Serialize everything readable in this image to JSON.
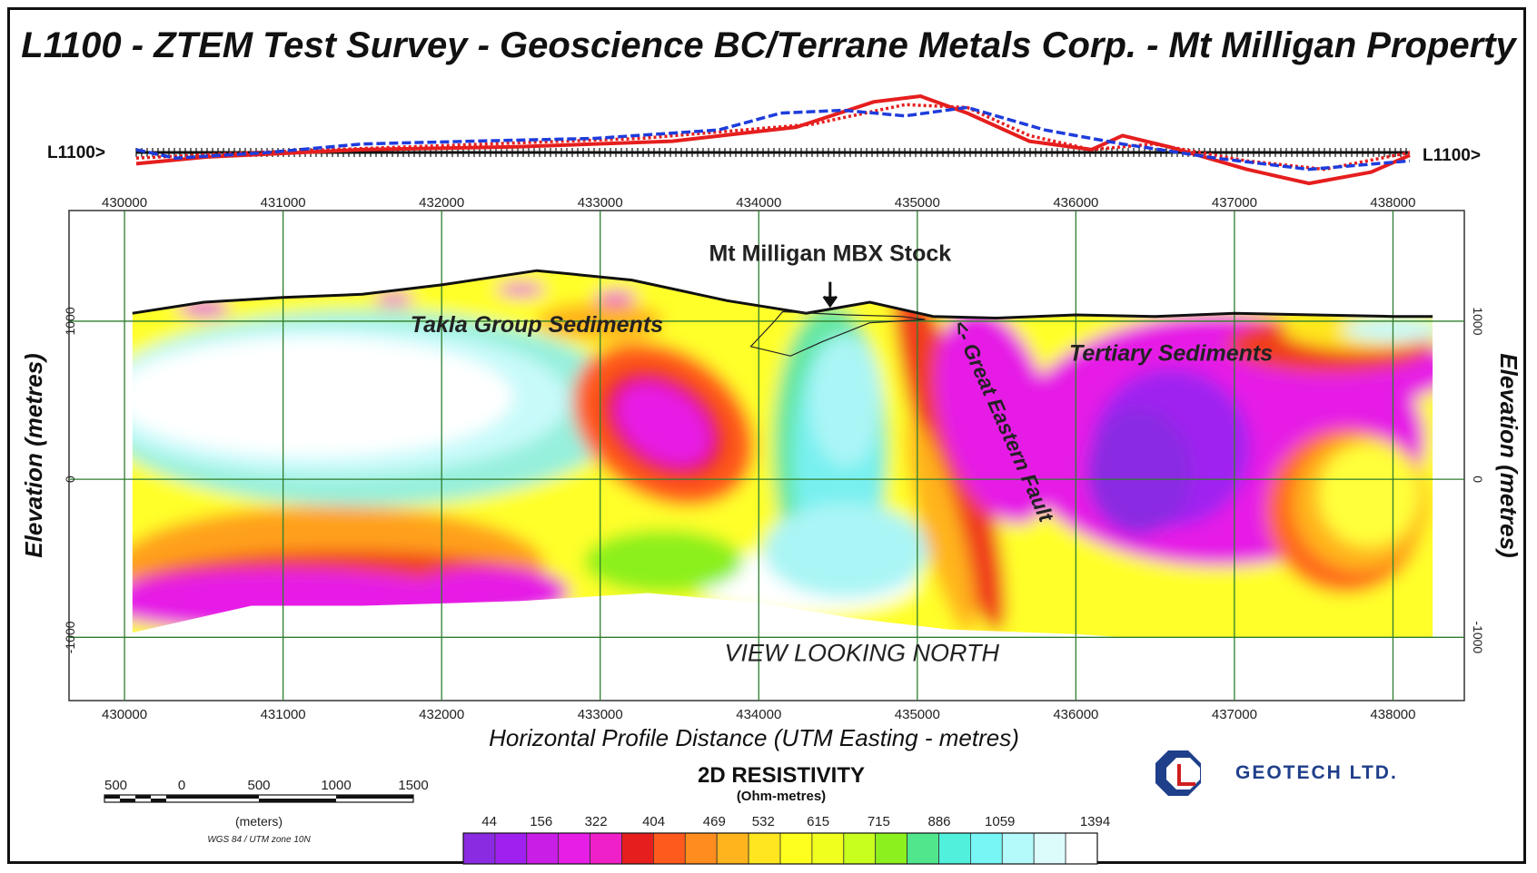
{
  "title": "L1100 - ZTEM Test Survey - Geoscience BC/Terrane Metals Corp. - Mt Milligan Property",
  "chart_data": {
    "type": "heatmap",
    "line_label": "L1100>",
    "x_ticks": [
      "430000",
      "431000",
      "432000",
      "433000",
      "434000",
      "435000",
      "436000",
      "437000",
      "438000"
    ],
    "xlim": [
      429650,
      438450
    ],
    "ylim": [
      -1400,
      1700
    ],
    "y_ticks": [
      "1000",
      "0",
      "-1000"
    ],
    "xlabel": "Horizontal Profile Distance (UTM Easting - metres)",
    "ylabel": "Elevation (metres)",
    "view_label": "VIEW LOOKING NORTH",
    "annotations": [
      {
        "text": "Mt Milligan MBX Stock",
        "x": 434450,
        "y": 1380
      },
      {
        "text": "Takla Group Sediments",
        "x": 432600,
        "y": 930
      },
      {
        "text": "Tertiary Sediments",
        "x": 436600,
        "y": 750
      },
      {
        "text": "<- Great Eastern Fault",
        "x": 435500,
        "y": 350
      }
    ],
    "topography": [
      [
        430050,
        1050
      ],
      [
        430500,
        1120
      ],
      [
        431000,
        1150
      ],
      [
        431500,
        1170
      ],
      [
        432000,
        1230
      ],
      [
        432600,
        1320
      ],
      [
        433200,
        1260
      ],
      [
        433800,
        1130
      ],
      [
        434300,
        1050
      ],
      [
        434700,
        1120
      ],
      [
        435100,
        1030
      ],
      [
        435500,
        1020
      ],
      [
        436000,
        1040
      ],
      [
        436500,
        1030
      ],
      [
        437000,
        1050
      ],
      [
        437500,
        1040
      ],
      [
        438000,
        1030
      ],
      [
        438250,
        1030
      ]
    ],
    "profile_series": [
      {
        "color": "#e61e1e",
        "points": [
          [
            430050,
            -0.2
          ],
          [
            430500,
            -0.08
          ],
          [
            431500,
            0.05
          ],
          [
            432500,
            0.1
          ],
          [
            433500,
            0.2
          ],
          [
            434300,
            0.45
          ],
          [
            434800,
            0.9
          ],
          [
            435100,
            1.0
          ],
          [
            435400,
            0.7
          ],
          [
            435800,
            0.2
          ],
          [
            436200,
            0.05
          ],
          [
            436400,
            0.3
          ],
          [
            436700,
            0.1
          ],
          [
            437200,
            -0.3
          ],
          [
            437600,
            -0.55
          ],
          [
            438000,
            -0.35
          ],
          [
            438250,
            -0.05
          ]
        ]
      },
      {
        "color": "#e61e1e",
        "points": [
          [
            430050,
            -0.1
          ],
          [
            430800,
            0.0
          ],
          [
            432000,
            0.12
          ],
          [
            433300,
            0.25
          ],
          [
            434400,
            0.5
          ],
          [
            435000,
            0.85
          ],
          [
            435400,
            0.8
          ],
          [
            435800,
            0.3
          ],
          [
            436200,
            0.05
          ],
          [
            436600,
            0.15
          ],
          [
            437200,
            -0.15
          ],
          [
            437700,
            -0.3
          ],
          [
            438250,
            0.0
          ]
        ]
      },
      {
        "color": "#1e3cdc",
        "points": [
          [
            430050,
            0.05
          ],
          [
            430300,
            -0.1
          ],
          [
            430900,
            0.0
          ],
          [
            431500,
            0.15
          ],
          [
            432200,
            0.2
          ],
          [
            433000,
            0.25
          ],
          [
            433800,
            0.4
          ],
          [
            434200,
            0.7
          ],
          [
            434600,
            0.75
          ],
          [
            435000,
            0.65
          ],
          [
            435400,
            0.8
          ],
          [
            435900,
            0.4
          ],
          [
            436400,
            0.15
          ],
          [
            437000,
            -0.1
          ],
          [
            437600,
            -0.3
          ],
          [
            438250,
            -0.15
          ]
        ]
      }
    ],
    "resistivity_scale": {
      "title": "2D RESISTIVITY",
      "unit": "(Ohm-metres)",
      "tick_labels": [
        "44",
        "156",
        "322",
        "404",
        "469",
        "532",
        "615",
        "715",
        "886",
        "1059",
        "1394"
      ],
      "colors": [
        "#8a2be2",
        "#a020f0",
        "#c81ee6",
        "#e61ee6",
        "#f020c8",
        "#e61e1e",
        "#ff5a1e",
        "#ff8c1e",
        "#ffb41e",
        "#ffe61e",
        "#ffff1e",
        "#f0ff1e",
        "#c8ff1e",
        "#8cf01e",
        "#50e68c",
        "#50f0dc",
        "#78f5f5",
        "#b4fafa",
        "#dcfcfc",
        "#ffffff"
      ]
    },
    "map_scale": {
      "ticks": [
        "500",
        "0",
        "500",
        "1000",
        "1500"
      ],
      "unit": "(meters)",
      "projection": "WGS 84 / UTM zone 10N"
    }
  },
  "logo": {
    "name": "GEOTECH LTD."
  }
}
